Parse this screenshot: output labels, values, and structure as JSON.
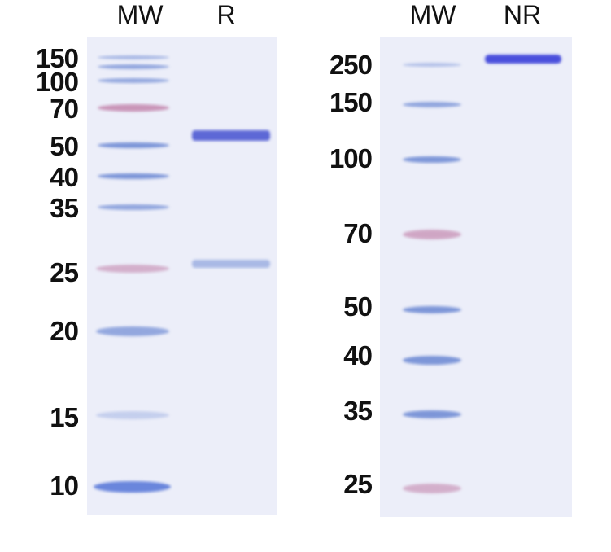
{
  "left_gel": {
    "lanes": [
      "MW",
      "R"
    ],
    "markers": [
      "150",
      "100",
      "70",
      "50",
      "40",
      "35",
      "25",
      "20",
      "15",
      "10"
    ]
  },
  "right_gel": {
    "lanes": [
      "MW",
      "NR"
    ],
    "markers": [
      "250",
      "150",
      "100",
      "70",
      "50",
      "40",
      "35",
      "25"
    ]
  },
  "colors": {
    "gel_background": "#eceef9",
    "marker_band": "#7d96d8",
    "marker_pink": "#c995b8",
    "sample_band": "#5a63d8"
  }
}
